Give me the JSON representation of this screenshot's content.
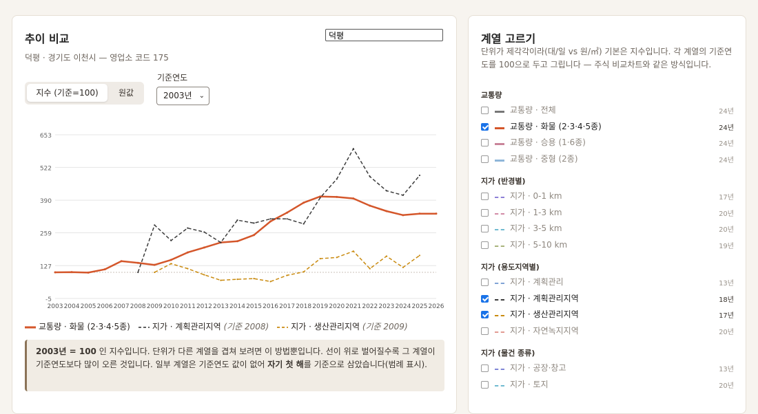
{
  "left": {
    "title": "추이 비교",
    "search_value": "덕평",
    "subtitle": "덕평 · 경기도 이천시 — 영업소 코드 175",
    "mode_index": "지수 (기준=100)",
    "mode_raw": "원값",
    "base_label": "기준연도",
    "base_value": "2003년",
    "legend": [
      {
        "label": "교통량 · 화물 (2·3·4·5종)",
        "note": "",
        "color": "#d4562a",
        "dash": "solid"
      },
      {
        "label": "지가 · 계획관리지역",
        "note": "(기준 2008)",
        "color": "#4a4a4a",
        "dash": "dash"
      },
      {
        "label": "지가 · 생산관리지역",
        "note": "(기준 2009)",
        "color": "#c98a0e",
        "dash": "dash"
      }
    ],
    "note_bold1": "2003년 = 100",
    "note_text1": " 인 지수입니다. 단위가 다른 계열을 겹쳐 보려면 이 방법뿐입니다. 선이 위로 벌어질수록 그 계열이 기준연도보다 많이 오른 것입니다. 일부 계열은 기준연도 값이 없어 ",
    "note_bold2": "자기 첫 해",
    "note_text2": "를 기준으로 삼았습니다(범례 표시)."
  },
  "right": {
    "title": "계열 고르기",
    "desc": "단위가 제각각이라(대/일 vs 원/㎡) 기본은 지수입니다. 각 계열의 기준연도를 100으로 두고 그립니다 — 주식 비교차트와 같은 방식입니다.",
    "groups": [
      {
        "name": "교통량",
        "items": [
          {
            "label": "교통량 · 전체",
            "years": "24년",
            "checked": false,
            "color": "#777777",
            "dash": "solid"
          },
          {
            "label": "교통량 · 화물 (2·3·4·5종)",
            "years": "24년",
            "checked": true,
            "color": "#d4562a",
            "dash": "solid"
          },
          {
            "label": "교통량 · 승용 (1·6종)",
            "years": "24년",
            "checked": false,
            "color": "#c9849a",
            "dash": "solid"
          },
          {
            "label": "교통량 · 중형 (2종)",
            "years": "24년",
            "checked": false,
            "color": "#8fb6d9",
            "dash": "solid"
          }
        ]
      },
      {
        "name": "지가 (반경별)",
        "items": [
          {
            "label": "지가 · 0-1 km",
            "years": "17년",
            "checked": false,
            "color": "#8c7fd6",
            "dash": "dash"
          },
          {
            "label": "지가 · 1-3 km",
            "years": "20년",
            "checked": false,
            "color": "#d28aa6",
            "dash": "dash"
          },
          {
            "label": "지가 · 3-5 km",
            "years": "20년",
            "checked": false,
            "color": "#6fbad0",
            "dash": "dash"
          },
          {
            "label": "지가 · 5-10 km",
            "years": "19년",
            "checked": false,
            "color": "#a8b37a",
            "dash": "dash"
          }
        ]
      },
      {
        "name": "지가 (용도지역별)",
        "items": [
          {
            "label": "지가 · 계획관리",
            "years": "13년",
            "checked": false,
            "color": "#7fa3d6",
            "dash": "dash"
          },
          {
            "label": "지가 · 계획관리지역",
            "years": "18년",
            "checked": true,
            "color": "#3b3b3b",
            "dash": "dash"
          },
          {
            "label": "지가 · 생산관리지역",
            "years": "17년",
            "checked": true,
            "color": "#c98a0e",
            "dash": "dash"
          },
          {
            "label": "지가 · 자연녹지지역",
            "years": "20년",
            "checked": false,
            "color": "#e29a92",
            "dash": "dash"
          }
        ]
      },
      {
        "name": "지가 (물건 종류)",
        "items": [
          {
            "label": "지가 · 공장·창고",
            "years": "13년",
            "checked": false,
            "color": "#7f86d6",
            "dash": "dash"
          },
          {
            "label": "지가 · 토지",
            "years": "20년",
            "checked": false,
            "color": "#6fbad0",
            "dash": "dash"
          }
        ]
      }
    ]
  },
  "chart_data": {
    "type": "line",
    "title": "",
    "xlabel": "",
    "ylabel": "",
    "x": [
      2003,
      2004,
      2005,
      2006,
      2007,
      2008,
      2009,
      2010,
      2011,
      2012,
      2013,
      2014,
      2015,
      2016,
      2017,
      2018,
      2019,
      2020,
      2021,
      2022,
      2023,
      2024,
      2025,
      2026
    ],
    "yticks": [
      -5,
      127,
      259,
      390,
      522,
      653
    ],
    "ylim": [
      -5,
      653
    ],
    "reference_line": 100,
    "grid": true,
    "series": [
      {
        "name": "교통량 · 화물 (2·3·4·5종)",
        "color": "#d4562a",
        "dash": "solid",
        "values": [
          100,
          101,
          99,
          112,
          145,
          138,
          130,
          150,
          180,
          200,
          220,
          225,
          250,
          305,
          340,
          380,
          405,
          403,
          397,
          368,
          346,
          330,
          336,
          336
        ]
      },
      {
        "name": "지가 · 계획관리지역",
        "note": "(기준 2008)",
        "color": "#3b3b3b",
        "dash": "dash",
        "values": [
          null,
          null,
          null,
          null,
          null,
          100,
          290,
          228,
          278,
          262,
          220,
          310,
          298,
          315,
          315,
          295,
          400,
          475,
          597,
          485,
          428,
          410,
          490,
          null
        ]
      },
      {
        "name": "지가 · 생산관리지역",
        "note": "(기준 2009)",
        "color": "#c98a0e",
        "dash": "dash",
        "values": [
          null,
          null,
          null,
          null,
          null,
          null,
          100,
          135,
          115,
          90,
          68,
          72,
          75,
          63,
          88,
          102,
          155,
          160,
          185,
          115,
          165,
          120,
          168,
          null
        ]
      }
    ]
  }
}
